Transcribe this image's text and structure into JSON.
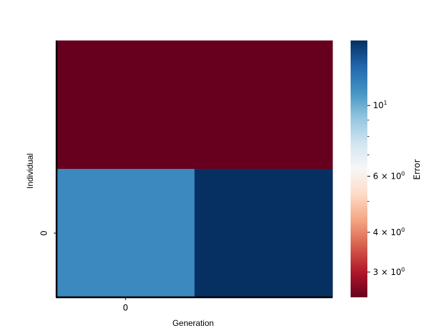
{
  "chart_data": {
    "type": "heatmap",
    "xlabel": "Generation",
    "ylabel": "Individual",
    "x_ticks": [
      "0"
    ],
    "y_ticks": [
      "0"
    ],
    "rows": 2,
    "cols": 2,
    "cells": [
      {
        "row": 0,
        "col": 0,
        "value": 2.5
      },
      {
        "row": 0,
        "col": 1,
        "value": 2.5
      },
      {
        "row": 1,
        "col": 0,
        "value": 11.5
      },
      {
        "row": 1,
        "col": 1,
        "value": 16.0
      }
    ],
    "colorbar": {
      "label": "Error",
      "scale": "log",
      "range": [
        2.5,
        16.0
      ],
      "colormap": "RdBu",
      "major_ticks": [
        {
          "value": 3,
          "label_base": "3 × 10",
          "label_exp": "0"
        },
        {
          "value": 4,
          "label_base": "4 × 10",
          "label_exp": "0"
        },
        {
          "value": 6,
          "label_base": "6 × 10",
          "label_exp": "0"
        },
        {
          "value": 10,
          "label_base": "10",
          "label_exp": "1"
        }
      ],
      "minor_ticks": [
        5,
        7,
        8,
        9
      ]
    },
    "colors": {
      "low": "#67001f",
      "high": "#053061"
    }
  }
}
